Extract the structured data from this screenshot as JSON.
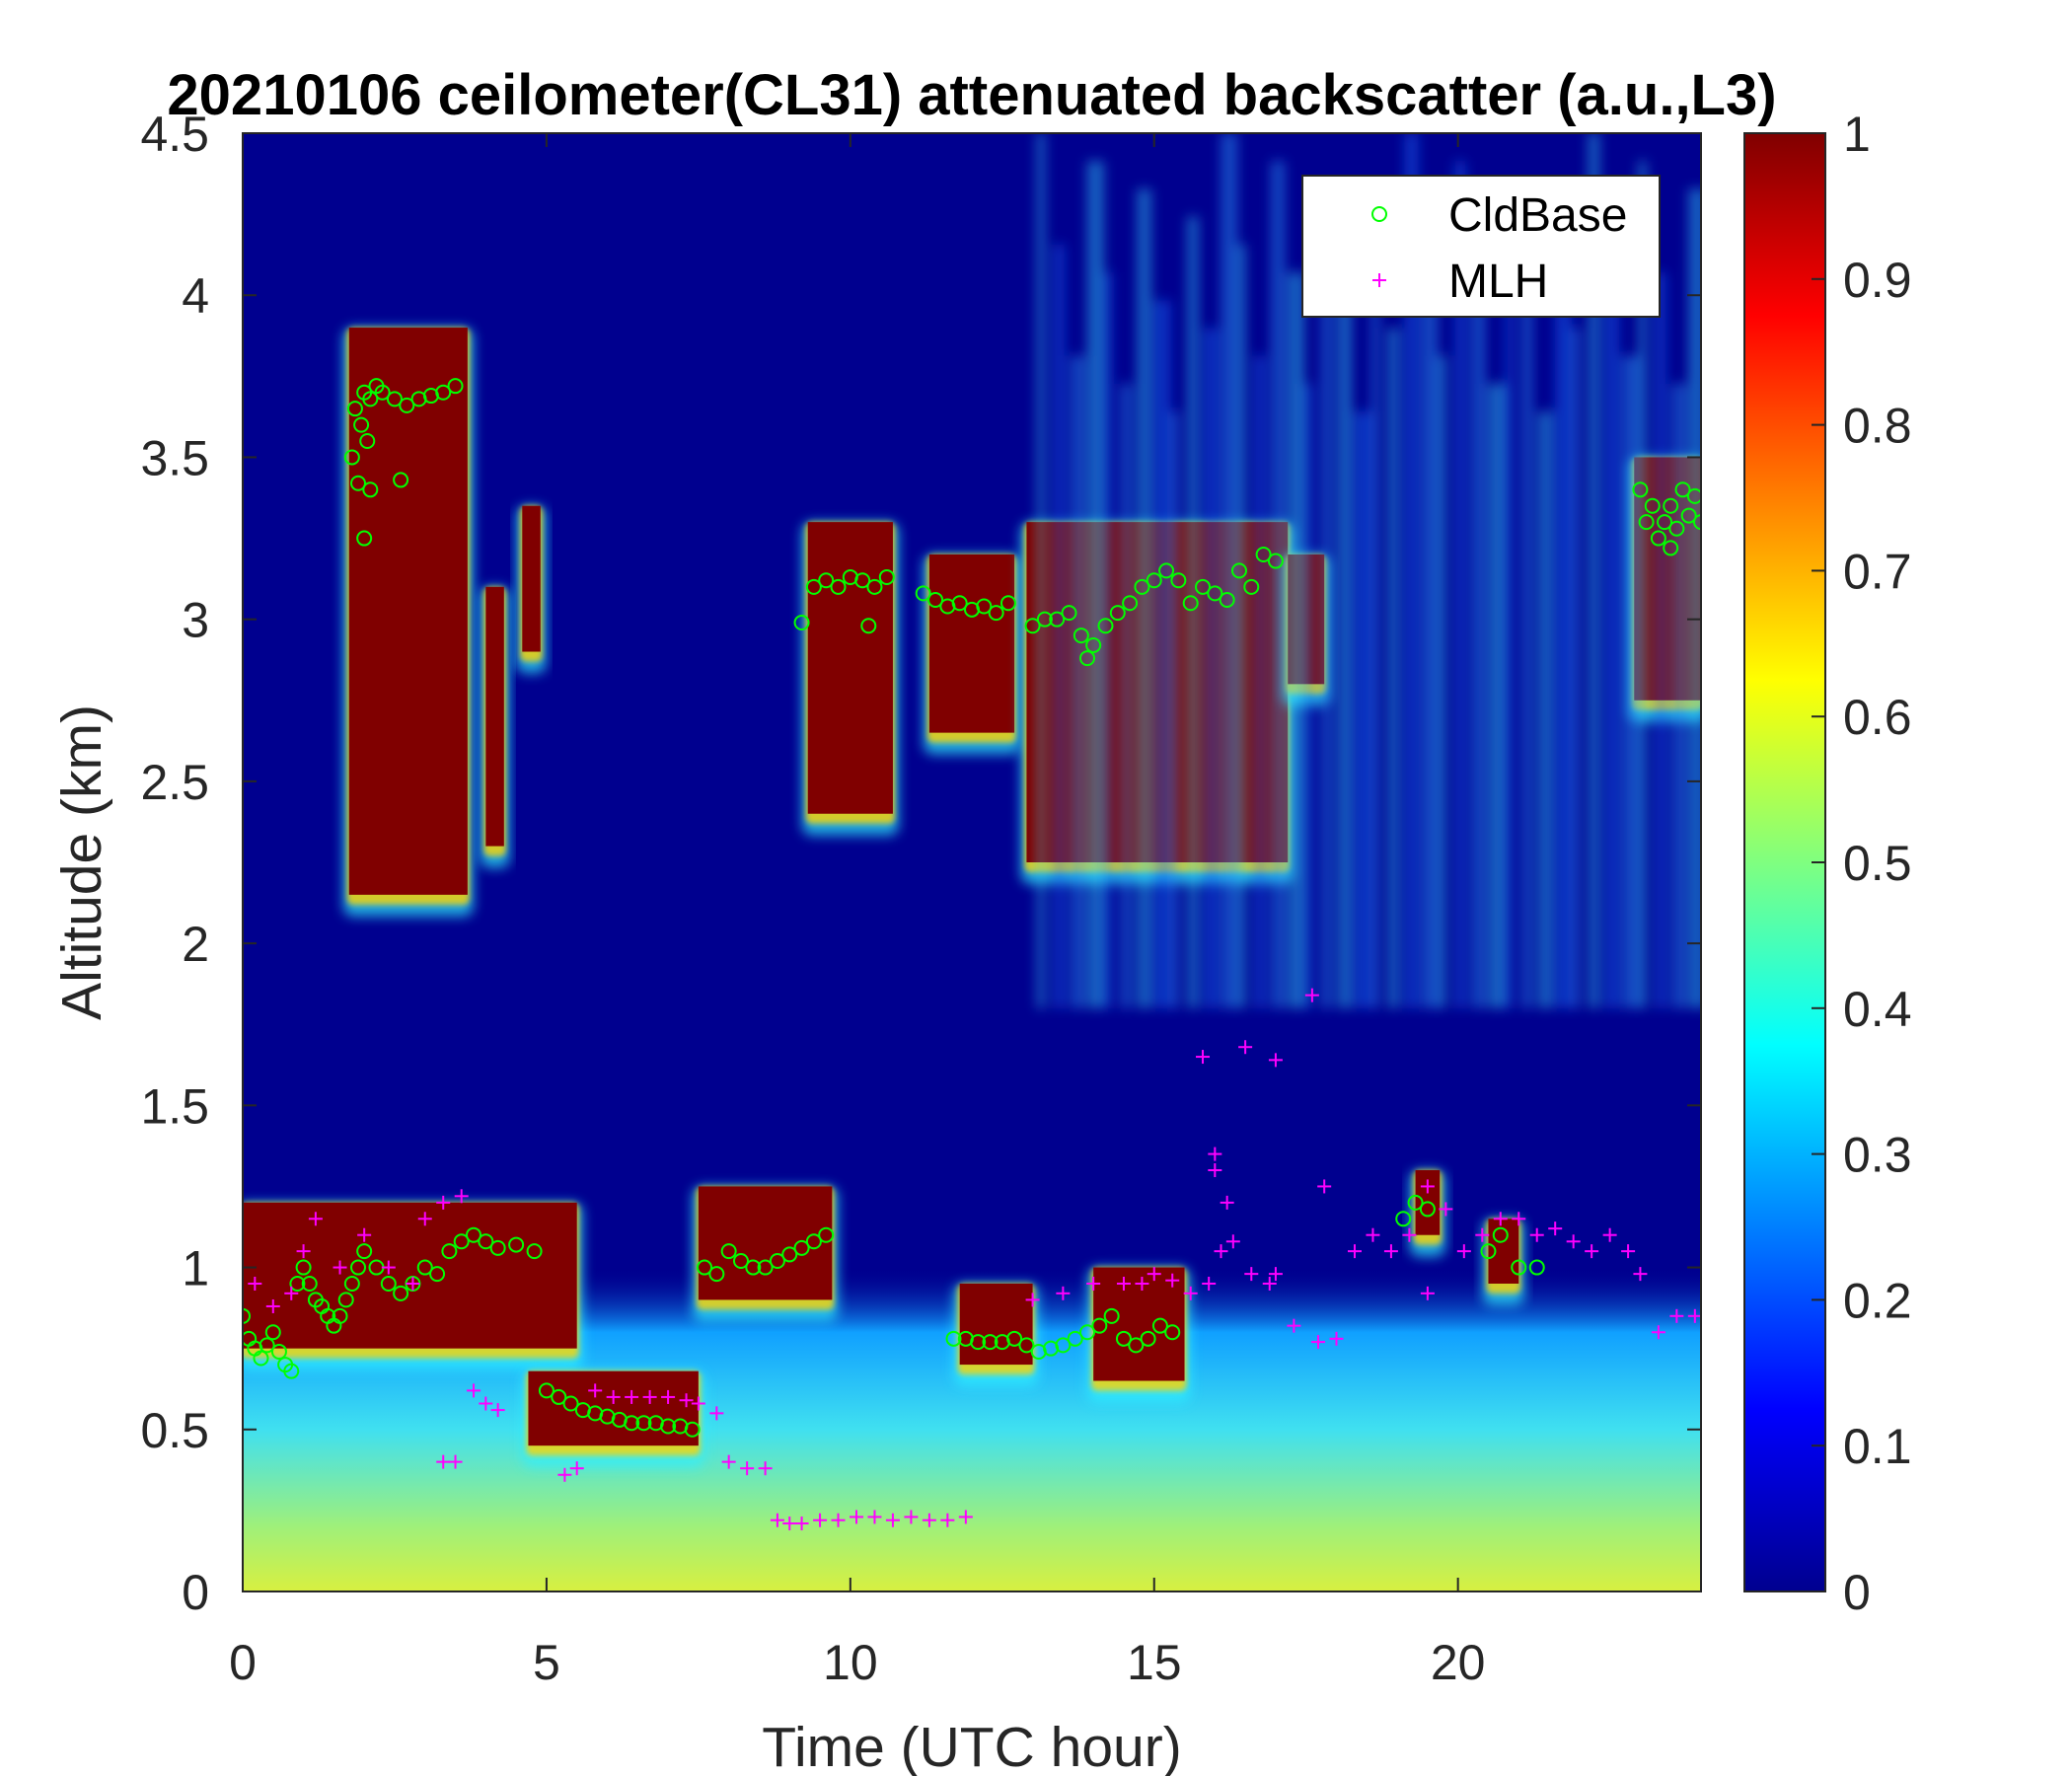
{
  "chart_data": {
    "type": "heatmap",
    "title": "20210106 ceilometer(CL31) attenuated backscatter (a.u.,L3)",
    "xlabel": "Time (UTC hour)",
    "ylabel": "Altitude (km)",
    "xlim": [
      0,
      24
    ],
    "ylim": [
      0,
      4.5
    ],
    "x_ticks": [
      "0",
      "5",
      "10",
      "15",
      "20"
    ],
    "y_ticks": [
      "0",
      "0.5",
      "1",
      "1.5",
      "2",
      "2.5",
      "3",
      "3.5",
      "4",
      "4.5"
    ],
    "colorbar": {
      "colormap": "jet",
      "range": [
        0,
        1
      ],
      "ticks": [
        "0",
        "0.1",
        "0.2",
        "0.3",
        "0.4",
        "0.5",
        "0.6",
        "0.7",
        "0.8",
        "0.9",
        "1"
      ]
    },
    "grid": false,
    "legend": {
      "placement": "top-right",
      "entries": [
        {
          "name": "CldBase",
          "marker": "circle",
          "color": "#00ff00"
        },
        {
          "name": "MLH",
          "marker": "plus",
          "color": "#ff00ff"
        }
      ]
    },
    "backscatter_regions": [
      {
        "kind": "surface-aerosol",
        "x": [
          0,
          24
        ],
        "y": [
          0,
          1.0
        ],
        "level": 0.45
      },
      {
        "kind": "cloud",
        "x": [
          1.75,
          3.7
        ],
        "y": [
          2.15,
          3.9
        ],
        "level": 1.0
      },
      {
        "kind": "cloud",
        "x": [
          4.0,
          4.3
        ],
        "y": [
          2.3,
          3.1
        ],
        "level": 1.0
      },
      {
        "kind": "cloud",
        "x": [
          4.6,
          4.9
        ],
        "y": [
          2.9,
          3.35
        ],
        "level": 0.95
      },
      {
        "kind": "cloud",
        "x": [
          9.3,
          10.7
        ],
        "y": [
          2.4,
          3.3
        ],
        "level": 1.0
      },
      {
        "kind": "cloud",
        "x": [
          11.3,
          12.7
        ],
        "y": [
          2.65,
          3.2
        ],
        "level": 1.0
      },
      {
        "kind": "cloud",
        "x": [
          12.9,
          17.2
        ],
        "y": [
          2.25,
          3.3
        ],
        "level": 1.0
      },
      {
        "kind": "cloud",
        "x": [
          17.2,
          17.8
        ],
        "y": [
          2.8,
          3.2
        ],
        "level": 1.0
      },
      {
        "kind": "cloud",
        "x": [
          22.9,
          24.0
        ],
        "y": [
          2.75,
          3.5
        ],
        "level": 1.0
      },
      {
        "kind": "cloud",
        "x": [
          0.0,
          5.5
        ],
        "y": [
          0.75,
          1.2
        ],
        "level": 1.0
      },
      {
        "kind": "cloud",
        "x": [
          4.7,
          7.5
        ],
        "y": [
          0.45,
          0.68
        ],
        "level": 1.0
      },
      {
        "kind": "cloud",
        "x": [
          7.5,
          9.7
        ],
        "y": [
          0.9,
          1.25
        ],
        "level": 1.0
      },
      {
        "kind": "cloud",
        "x": [
          11.8,
          13.0
        ],
        "y": [
          0.7,
          0.95
        ],
        "level": 1.0
      },
      {
        "kind": "cloud",
        "x": [
          14.0,
          15.5
        ],
        "y": [
          0.65,
          1.0
        ],
        "level": 1.0
      },
      {
        "kind": "cloud",
        "x": [
          19.3,
          19.7
        ],
        "y": [
          1.1,
          1.3
        ],
        "level": 1.0
      },
      {
        "kind": "cloud",
        "x": [
          20.5,
          21.0
        ],
        "y": [
          0.95,
          1.15
        ],
        "level": 1.0
      },
      {
        "kind": "cirrus-streaks",
        "x": [
          13.0,
          24.0
        ],
        "y": [
          1.8,
          4.5
        ],
        "level": 0.3
      }
    ],
    "series": [
      {
        "name": "CldBase",
        "marker": "circle",
        "color": "#00ff00",
        "x": [
          0.0,
          0.1,
          0.2,
          0.3,
          0.4,
          0.5,
          0.6,
          0.7,
          0.8,
          0.9,
          1.0,
          1.1,
          1.2,
          1.3,
          1.4,
          1.5,
          1.6,
          1.7,
          1.8,
          1.9,
          2.0,
          2.2,
          2.4,
          2.6,
          2.8,
          3.0,
          3.2,
          3.4,
          3.6,
          3.8,
          4.0,
          4.2,
          4.5,
          4.8,
          5.0,
          5.2,
          5.4,
          5.6,
          5.8,
          6.0,
          6.2,
          6.4,
          6.6,
          6.8,
          7.0,
          7.2,
          7.4,
          7.6,
          7.8,
          8.0,
          8.2,
          8.4,
          8.6,
          8.8,
          9.0,
          9.2,
          9.4,
          9.6,
          11.7,
          11.9,
          12.1,
          12.3,
          12.5,
          12.7,
          12.9,
          13.1,
          13.3,
          13.5,
          13.7,
          13.9,
          14.1,
          14.3,
          14.5,
          14.7,
          14.9,
          15.1,
          15.3,
          19.1,
          19.3,
          19.5,
          20.5,
          20.7,
          21.0,
          21.3,
          1.8,
          1.85,
          1.9,
          1.95,
          2.0,
          2.05,
          2.1,
          2.2,
          2.3,
          2.5,
          2.7,
          2.9,
          3.1,
          3.3,
          3.5,
          2.0,
          2.1,
          2.6,
          9.2,
          9.4,
          9.6,
          9.8,
          10.0,
          10.2,
          10.4,
          10.6,
          10.3,
          11.2,
          11.4,
          11.6,
          11.8,
          12.0,
          12.2,
          12.4,
          12.6,
          13.0,
          13.2,
          13.4,
          13.6,
          13.8,
          13.9,
          14.0,
          14.2,
          14.4,
          14.6,
          14.8,
          15.0,
          15.2,
          15.4,
          15.6,
          15.8,
          16.0,
          16.2,
          16.4,
          16.6,
          16.8,
          17.0,
          23.0,
          23.1,
          23.2,
          23.3,
          23.4,
          23.5,
          23.6,
          23.7,
          23.8,
          23.9,
          24.0,
          23.5
        ],
        "y": [
          0.85,
          0.78,
          0.75,
          0.72,
          0.76,
          0.8,
          0.74,
          0.7,
          0.68,
          0.95,
          1.0,
          0.95,
          0.9,
          0.88,
          0.85,
          0.82,
          0.85,
          0.9,
          0.95,
          1.0,
          1.05,
          1.0,
          0.95,
          0.92,
          0.95,
          1.0,
          0.98,
          1.05,
          1.08,
          1.1,
          1.08,
          1.06,
          1.07,
          1.05,
          0.62,
          0.6,
          0.58,
          0.56,
          0.55,
          0.54,
          0.53,
          0.52,
          0.52,
          0.52,
          0.51,
          0.51,
          0.5,
          1.0,
          0.98,
          1.05,
          1.02,
          1.0,
          1.0,
          1.02,
          1.04,
          1.06,
          1.08,
          1.1,
          0.78,
          0.78,
          0.77,
          0.77,
          0.77,
          0.78,
          0.76,
          0.74,
          0.75,
          0.76,
          0.78,
          0.8,
          0.82,
          0.85,
          0.78,
          0.76,
          0.78,
          0.82,
          0.8,
          1.15,
          1.2,
          1.18,
          1.05,
          1.1,
          1.0,
          1.0,
          3.5,
          3.65,
          3.42,
          3.6,
          3.7,
          3.55,
          3.68,
          3.72,
          3.7,
          3.68,
          3.66,
          3.68,
          3.69,
          3.7,
          3.72,
          3.25,
          3.4,
          3.43,
          2.99,
          3.1,
          3.12,
          3.1,
          3.13,
          3.12,
          3.1,
          3.13,
          2.98,
          3.08,
          3.06,
          3.04,
          3.05,
          3.03,
          3.04,
          3.02,
          3.05,
          2.98,
          3.0,
          3.0,
          3.02,
          2.95,
          2.88,
          2.92,
          2.98,
          3.02,
          3.05,
          3.1,
          3.12,
          3.15,
          3.12,
          3.05,
          3.1,
          3.08,
          3.06,
          3.15,
          3.1,
          3.2,
          3.18,
          3.4,
          3.3,
          3.35,
          3.25,
          3.3,
          3.35,
          3.28,
          3.4,
          3.32,
          3.38,
          3.3,
          3.22
        ]
      },
      {
        "name": "MLH",
        "marker": "plus",
        "color": "#ff00ff",
        "x": [
          0.2,
          0.5,
          0.8,
          1.0,
          1.2,
          1.6,
          2.0,
          2.4,
          2.8,
          3.0,
          3.3,
          3.6,
          3.3,
          3.5,
          3.8,
          4.0,
          4.2,
          5.3,
          5.5,
          5.8,
          6.1,
          6.4,
          6.7,
          7.0,
          7.3,
          7.5,
          7.8,
          8.0,
          8.3,
          8.6,
          8.8,
          9.0,
          9.2,
          9.5,
          9.8,
          10.1,
          10.4,
          10.7,
          11.0,
          11.3,
          11.6,
          11.9,
          13.0,
          13.5,
          14.0,
          14.5,
          14.8,
          15.0,
          15.3,
          15.6,
          15.9,
          16.1,
          16.3,
          16.6,
          16.9,
          17.0,
          17.3,
          17.7,
          18.0,
          18.3,
          18.6,
          18.9,
          19.2,
          19.5,
          19.8,
          20.1,
          20.4,
          20.7,
          21.0,
          21.3,
          21.6,
          21.9,
          22.2,
          22.5,
          22.8,
          23.0,
          23.3,
          23.6,
          23.9,
          16.0,
          16.2,
          16.5,
          17.0,
          17.6,
          17.8,
          19.5,
          15.8,
          16.0
        ],
        "y": [
          0.95,
          0.88,
          0.92,
          1.05,
          1.15,
          1.0,
          1.1,
          1.0,
          0.95,
          1.15,
          1.2,
          1.22,
          0.4,
          0.4,
          0.62,
          0.58,
          0.56,
          0.36,
          0.38,
          0.62,
          0.6,
          0.6,
          0.6,
          0.6,
          0.59,
          0.58,
          0.55,
          0.4,
          0.38,
          0.38,
          0.22,
          0.21,
          0.21,
          0.22,
          0.22,
          0.23,
          0.23,
          0.22,
          0.23,
          0.22,
          0.22,
          0.23,
          0.9,
          0.92,
          0.95,
          0.95,
          0.95,
          0.98,
          0.96,
          0.92,
          0.95,
          1.05,
          1.08,
          0.98,
          0.95,
          0.98,
          0.82,
          0.77,
          0.78,
          1.05,
          1.1,
          1.05,
          1.1,
          1.25,
          1.18,
          1.05,
          1.1,
          1.15,
          1.15,
          1.1,
          1.12,
          1.08,
          1.05,
          1.1,
          1.05,
          0.98,
          0.8,
          0.85,
          0.85,
          1.35,
          1.2,
          1.68,
          1.64,
          1.84,
          1.25,
          0.92,
          1.65,
          1.3
        ]
      }
    ]
  }
}
